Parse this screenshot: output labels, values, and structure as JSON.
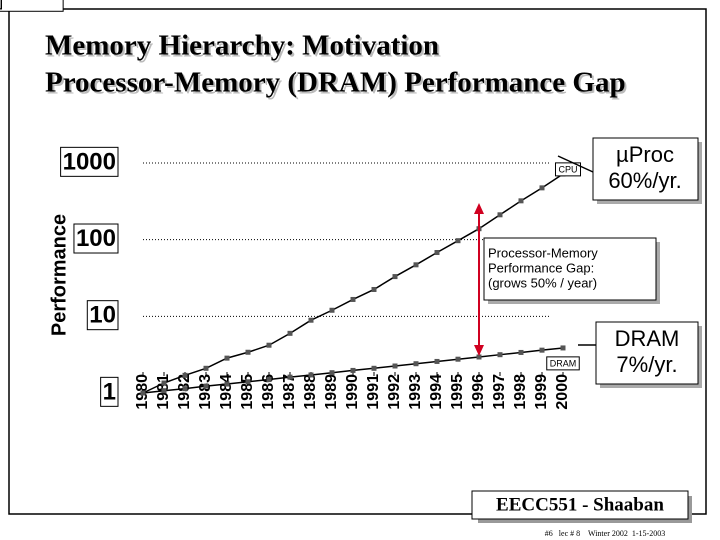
{
  "chart_data": {
    "type": "line",
    "title": "Memory Hierarchy:  Motivation",
    "subtitle": "Processor-Memory (DRAM) Performance Gap",
    "y_label": "Performance",
    "yscale": "log",
    "ylim": [
      1,
      1000
    ],
    "yticks": [
      1,
      10,
      100,
      1000
    ],
    "grid": true,
    "xlim": [
      1980,
      2000
    ],
    "x": [
      1980,
      1981,
      1982,
      1983,
      1984,
      1985,
      1986,
      1987,
      1988,
      1989,
      1990,
      1991,
      1992,
      1993,
      1994,
      1995,
      1996,
      1997,
      1998,
      1999,
      2000
    ],
    "xticks": [
      1980,
      1981,
      1982,
      1983,
      1984,
      1985,
      1986,
      1987,
      1988,
      1989,
      1990,
      1991,
      1992,
      1993,
      1994,
      1995,
      1996,
      1997,
      1998,
      1999,
      2000
    ],
    "series": [
      {
        "name": "CPU",
        "color": "#000000",
        "values": [
          1,
          1.35,
          1.7,
          2.1,
          2.85,
          3.4,
          4.2,
          6,
          8.9,
          12,
          16.6,
          22.4,
          33,
          47,
          68,
          97,
          139,
          211,
          321,
          474,
          720
        ]
      },
      {
        "name": "DRAM",
        "color": "#000000",
        "values": [
          1,
          1.07,
          1.14,
          1.23,
          1.31,
          1.4,
          1.5,
          1.61,
          1.72,
          1.84,
          1.97,
          2.1,
          2.25,
          2.41,
          2.58,
          2.76,
          2.95,
          3.16,
          3.38,
          3.62,
          3.87
        ]
      }
    ],
    "annotations": [
      [
        "µProc",
        "60%/yr."
      ],
      [
        "Processor-Memory",
        "Performance Gap:",
        "(grows 50% / year)"
      ],
      [
        "DRAM",
        "7%/yr."
      ]
    ]
  },
  "footer": {
    "course": "EECC551 - Shaaban",
    "note": "#6   lec # 8    Winter 2002  1-15-2003"
  }
}
